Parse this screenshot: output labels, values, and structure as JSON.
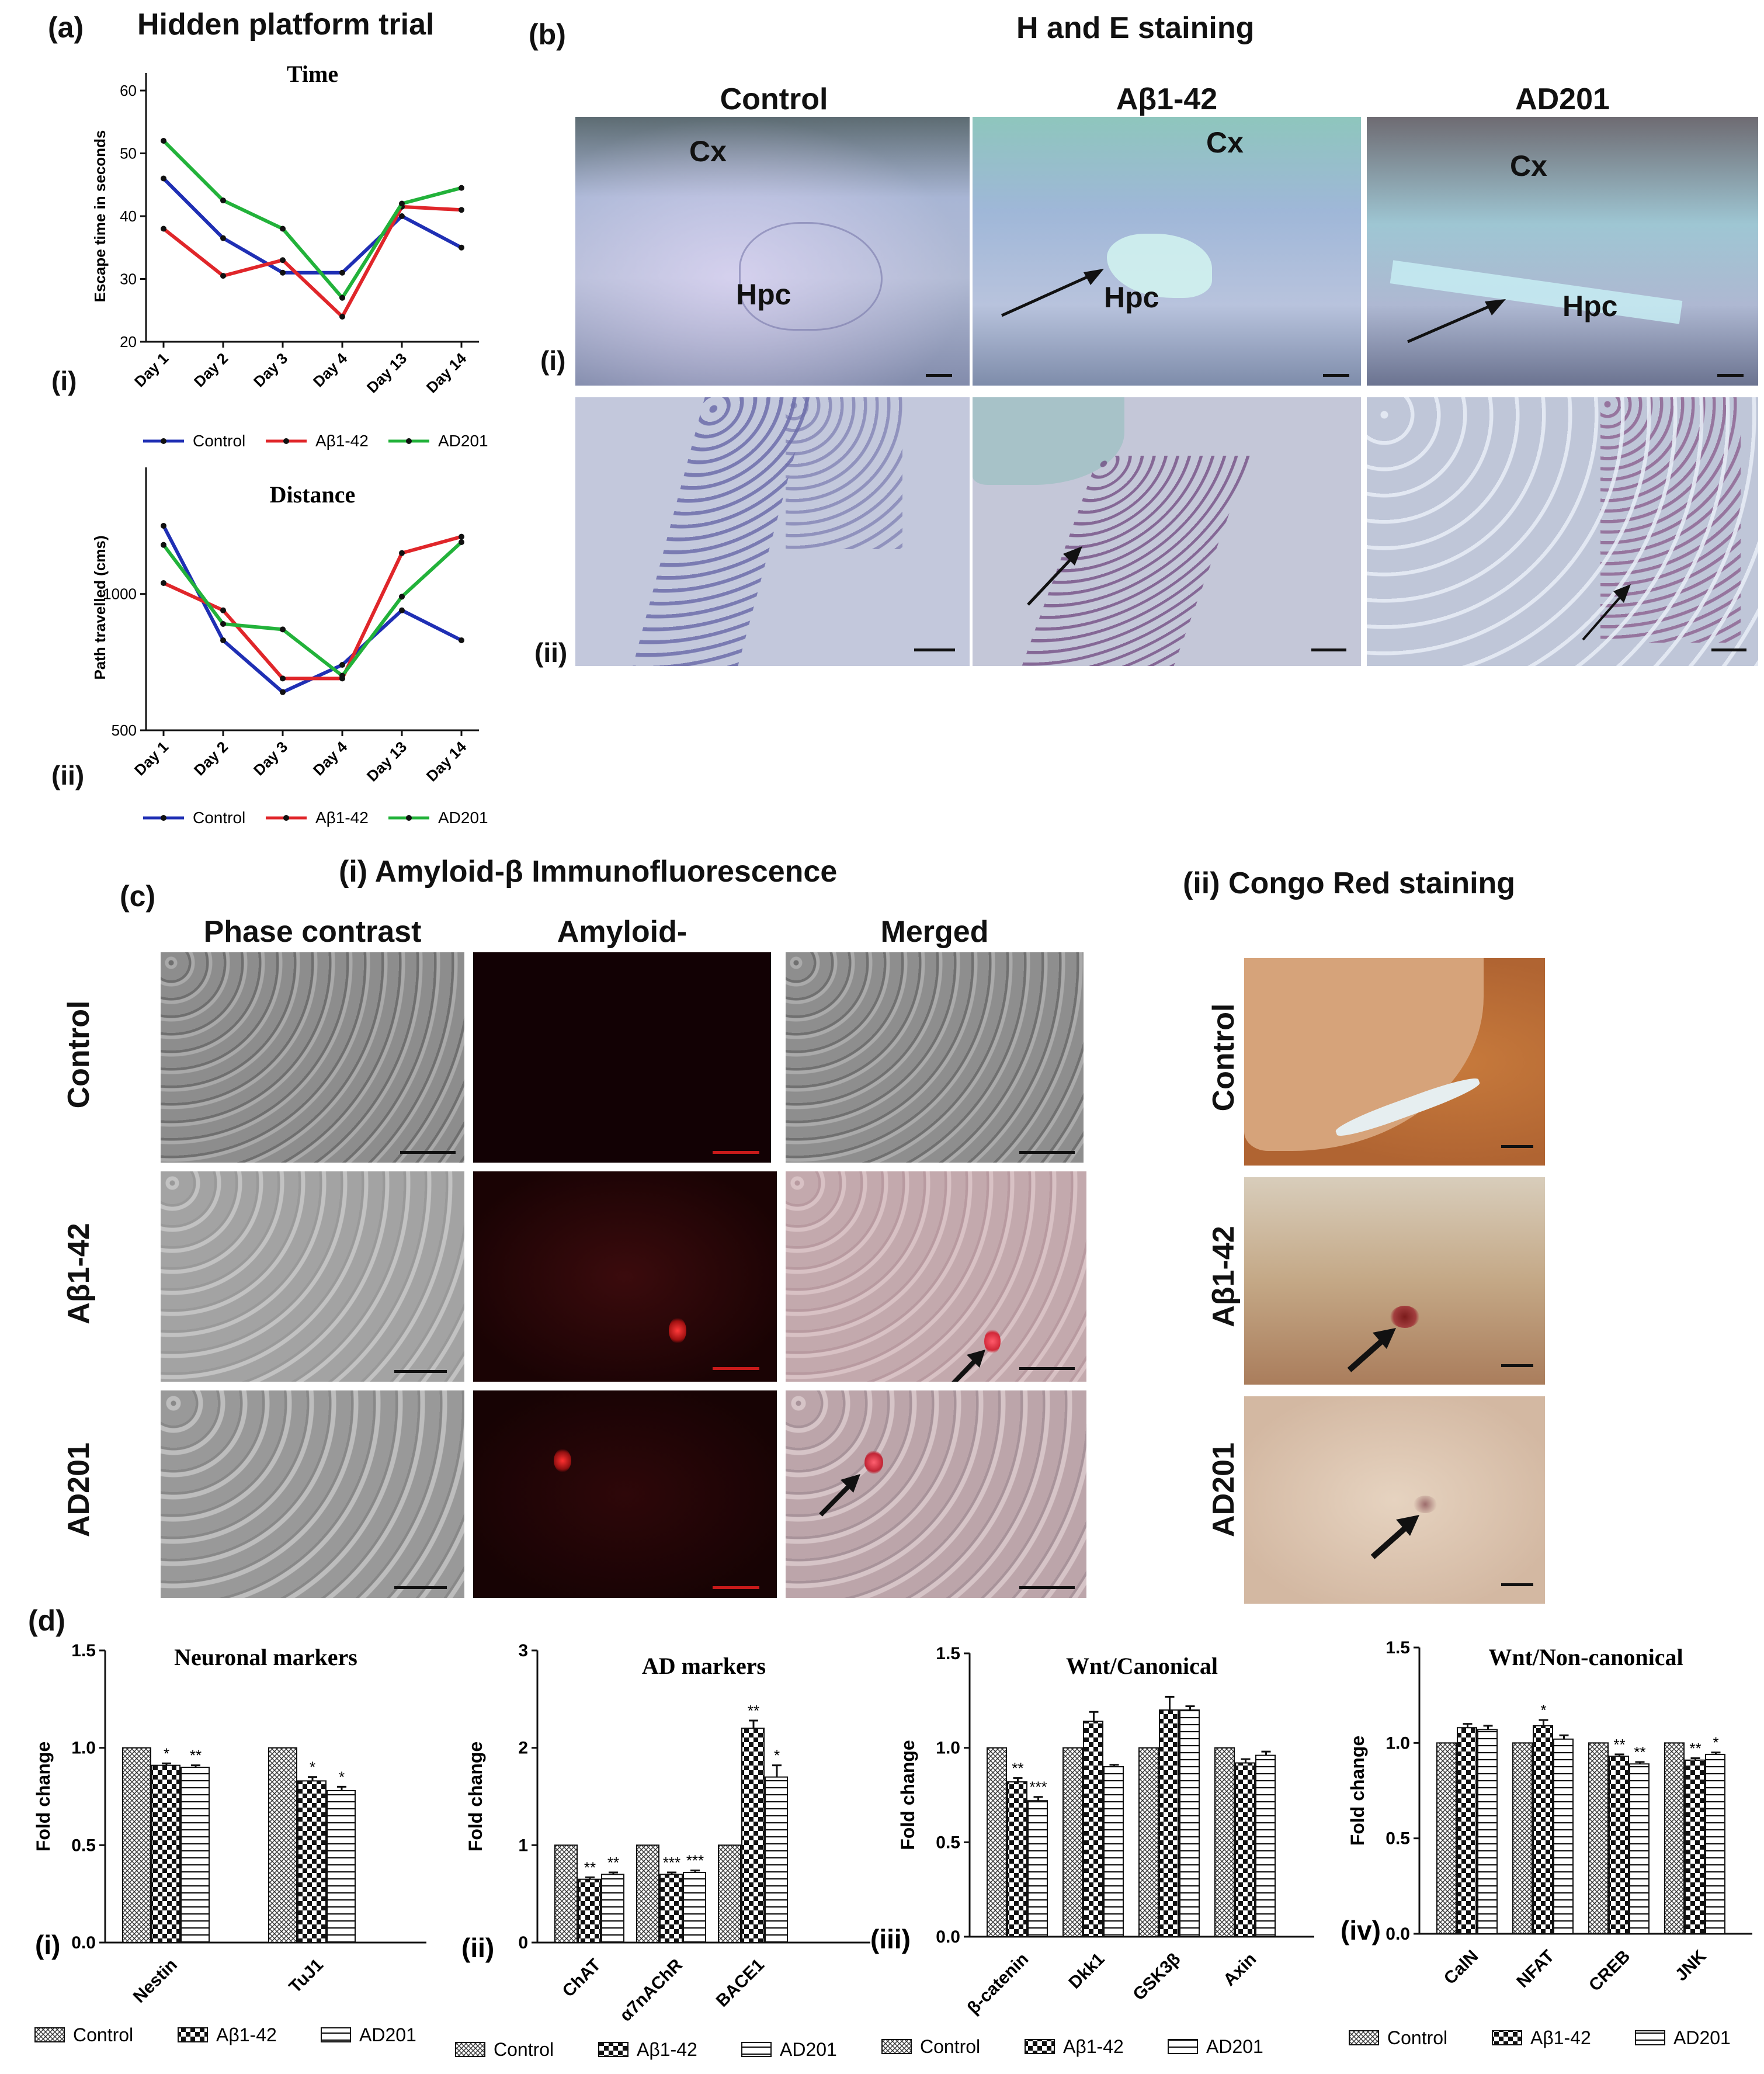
{
  "panels": {
    "a": {
      "letter": "(a)",
      "title": "Hidden platform trial",
      "sub_i": "(i)",
      "sub_ii": "(ii)"
    },
    "b": {
      "letter": "(b)",
      "title": "H and E staining",
      "columns": [
        "Control",
        "Aβ1-42",
        "AD201"
      ],
      "row_i": "(i)",
      "row_ii": "(ii)",
      "labels": {
        "cx": "Cx",
        "hpc": "Hpc"
      }
    },
    "c": {
      "letter": "(c)",
      "title_i": "(i) Amyloid-β Immunofluorescence",
      "title_ii": "(ii) Congo Red staining",
      "columns": [
        "Phase contrast",
        "Amyloid-",
        "Merged"
      ],
      "rows": [
        "Control",
        "Aβ1-42",
        "AD201"
      ]
    },
    "d": {
      "letter": "(d)",
      "subs": [
        "(i)",
        "(ii)",
        "(iii)",
        "(iv)"
      ]
    }
  },
  "legend": {
    "control": "Control",
    "abeta": "Aβ1-42",
    "ad201": "AD201"
  },
  "colors": {
    "control": "#1f2fb4",
    "abeta": "#e0262a",
    "ad201": "#22b23a",
    "bar_edge": "#111111"
  },
  "chart_data": [
    {
      "id": "a_i",
      "type": "line",
      "title": "Time",
      "xlabel": "",
      "ylabel": "Escape time in seconds",
      "categories": [
        "Day 1",
        "Day 2",
        "Day 3",
        "Day 4",
        "Day 13",
        "Day 14"
      ],
      "ylim": [
        20,
        60
      ],
      "yticks": [
        20,
        30,
        40,
        50,
        60
      ],
      "series": [
        {
          "name": "Control",
          "values": [
            46,
            36.5,
            31,
            31,
            40,
            35
          ]
        },
        {
          "name": "Aβ1-42",
          "values": [
            38,
            30.5,
            33,
            24,
            41.5,
            41
          ]
        },
        {
          "name": "AD201",
          "values": [
            52,
            42.5,
            38,
            27,
            42,
            44.5
          ]
        }
      ],
      "legend_position": "bottom"
    },
    {
      "id": "a_ii",
      "type": "line",
      "title": "Distance",
      "xlabel": "",
      "ylabel": "Path travelled (cms)",
      "categories": [
        "Day 1",
        "Day 2",
        "Day 3",
        "Day 4",
        "Day 13",
        "Day 14"
      ],
      "ylim": [
        500,
        1400
      ],
      "yticks": [
        500,
        1000
      ],
      "series": [
        {
          "name": "Control",
          "values": [
            1250,
            830,
            640,
            740,
            940,
            830
          ]
        },
        {
          "name": "Aβ1-42",
          "values": [
            1040,
            940,
            690,
            690,
            1150,
            1210
          ]
        },
        {
          "name": "AD201",
          "values": [
            1180,
            890,
            870,
            700,
            990,
            1190
          ]
        }
      ],
      "legend_position": "bottom"
    },
    {
      "id": "d_i",
      "type": "bar",
      "title": "Neuronal markers",
      "ylabel": "Fold change",
      "categories": [
        "Nestin",
        "TuJ1"
      ],
      "ylim": [
        0,
        1.5
      ],
      "yticks": [
        0.0,
        0.5,
        1.0,
        1.5
      ],
      "series": [
        {
          "name": "Control",
          "values": [
            1.0,
            1.0
          ],
          "errors": [
            0,
            0
          ],
          "sig": [
            "",
            ""
          ]
        },
        {
          "name": "Aβ1-42",
          "values": [
            0.91,
            0.83
          ],
          "errors": [
            0.01,
            0.02
          ],
          "sig": [
            "*",
            "*"
          ]
        },
        {
          "name": "AD201",
          "values": [
            0.9,
            0.78
          ],
          "errors": [
            0.01,
            0.02
          ],
          "sig": [
            "**",
            "*"
          ]
        }
      ]
    },
    {
      "id": "d_ii",
      "type": "bar",
      "title": "AD markers",
      "ylabel": "Fold change",
      "categories": [
        "ChAT",
        "α7nAChR",
        "BACE1"
      ],
      "ylim": [
        0,
        3
      ],
      "yticks": [
        0,
        1,
        2,
        3
      ],
      "series": [
        {
          "name": "Control",
          "values": [
            1.0,
            1.0,
            1.0
          ],
          "errors": [
            0,
            0,
            0
          ],
          "sig": [
            "",
            "",
            ""
          ]
        },
        {
          "name": "Aβ1-42",
          "values": [
            0.65,
            0.7,
            2.2
          ],
          "errors": [
            0.02,
            0.02,
            0.08
          ],
          "sig": [
            "**",
            "***",
            "**"
          ]
        },
        {
          "name": "AD201",
          "values": [
            0.7,
            0.72,
            1.7
          ],
          "errors": [
            0.02,
            0.02,
            0.12
          ],
          "sig": [
            "**",
            "***",
            "*"
          ]
        }
      ]
    },
    {
      "id": "d_iii",
      "type": "bar",
      "title": "Wnt/Canonical",
      "ylabel": "Fold change",
      "categories": [
        "β-catenin",
        "Dkk1",
        "GSK3β",
        "Axin"
      ],
      "ylim": [
        0,
        1.5
      ],
      "yticks": [
        0.0,
        0.5,
        1.0,
        1.5
      ],
      "series": [
        {
          "name": "Control",
          "values": [
            1.0,
            1.0,
            1.0,
            1.0
          ],
          "errors": [
            0,
            0,
            0,
            0
          ],
          "sig": [
            "",
            "",
            "",
            ""
          ]
        },
        {
          "name": "Aβ1-42",
          "values": [
            0.82,
            1.14,
            1.2,
            0.92
          ],
          "errors": [
            0.02,
            0.05,
            0.07,
            0.02
          ],
          "sig": [
            "**",
            "",
            "",
            ""
          ]
        },
        {
          "name": "AD201",
          "values": [
            0.72,
            0.9,
            1.2,
            0.96
          ],
          "errors": [
            0.02,
            0.01,
            0.02,
            0.02
          ],
          "sig": [
            "***",
            "",
            "",
            ""
          ]
        }
      ]
    },
    {
      "id": "d_iv",
      "type": "bar",
      "title": "Wnt/Non-canonical",
      "ylabel": "Fold change",
      "categories": [
        "CalN",
        "NFAT",
        "CREB",
        "JNK"
      ],
      "ylim": [
        0,
        1.5
      ],
      "yticks": [
        0.0,
        0.5,
        1.0,
        1.5
      ],
      "series": [
        {
          "name": "Control",
          "values": [
            1.0,
            1.0,
            1.0,
            1.0
          ],
          "errors": [
            0,
            0,
            0,
            0
          ],
          "sig": [
            "",
            "",
            "",
            ""
          ]
        },
        {
          "name": "Aβ1-42",
          "values": [
            1.08,
            1.09,
            0.93,
            0.91
          ],
          "errors": [
            0.02,
            0.03,
            0.01,
            0.01
          ],
          "sig": [
            "",
            "*",
            "**",
            "**"
          ]
        },
        {
          "name": "AD201",
          "values": [
            1.07,
            1.02,
            0.89,
            0.94
          ],
          "errors": [
            0.02,
            0.02,
            0.01,
            0.01
          ],
          "sig": [
            "",
            "",
            "**",
            "*"
          ]
        }
      ]
    }
  ]
}
